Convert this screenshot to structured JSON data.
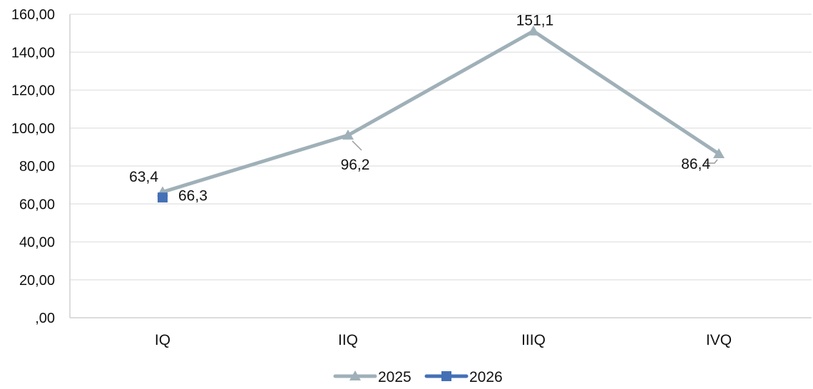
{
  "chart_data": {
    "type": "line",
    "title": "",
    "xlabel": "",
    "ylabel": "",
    "categories": [
      "IQ",
      "IIQ",
      "IIIQ",
      "IVQ"
    ],
    "y_ticks": [
      ",00",
      "20,00",
      "40,00",
      "60,00",
      "80,00",
      "100,00",
      "120,00",
      "140,00",
      "160,00"
    ],
    "ylim": [
      0,
      160
    ],
    "grid": true,
    "legend_position": "bottom",
    "series": [
      {
        "name": "2025",
        "color": "#9fb0b8",
        "marker": "triangle",
        "values": [
          66.3,
          96.2,
          151.1,
          86.4
        ],
        "labels": [
          "66,3",
          "96,2",
          "151,1",
          "86,4"
        ]
      },
      {
        "name": "2026",
        "color": "#4470b6",
        "marker": "square",
        "values": [
          63.4,
          null,
          null,
          null
        ],
        "labels": [
          "63,4",
          null,
          null,
          null
        ]
      }
    ]
  }
}
